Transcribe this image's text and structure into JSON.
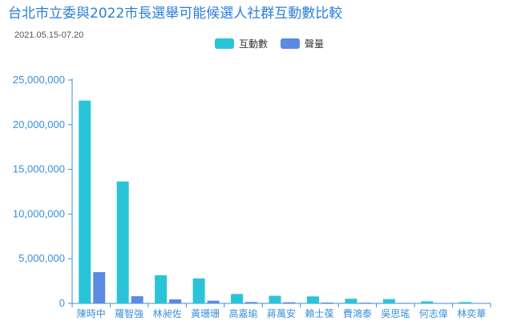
{
  "chart_data": {
    "type": "bar",
    "title": "台北市立委與2022市長選舉可能候選人社群互動數比較",
    "subtitle": "2021.05.15-07.20",
    "categories": [
      "陳時中",
      "羅智強",
      "林昶佐",
      "黃珊珊",
      "高嘉瑜",
      "蔣萬安",
      "賴士葆",
      "費鴻泰",
      "吳思瑤",
      "何志偉",
      "林奕華"
    ],
    "series": [
      {
        "name": "互動數",
        "color": "#29c4d8",
        "values": [
          22700000,
          13650000,
          3150000,
          2800000,
          1050000,
          850000,
          780000,
          520000,
          480000,
          230000,
          150000
        ]
      },
      {
        "name": "聲量",
        "color": "#5b8ae0",
        "values": [
          3500000,
          800000,
          450000,
          300000,
          150000,
          120000,
          100000,
          80000,
          60000,
          50000,
          40000
        ]
      }
    ],
    "yticks": [
      "0",
      "5,000,000",
      "10,000,000",
      "15,000,000",
      "20,000,000",
      "25,000,000"
    ],
    "ylim": [
      0,
      25000000
    ],
    "legend_position": "top-center",
    "grid": false
  }
}
